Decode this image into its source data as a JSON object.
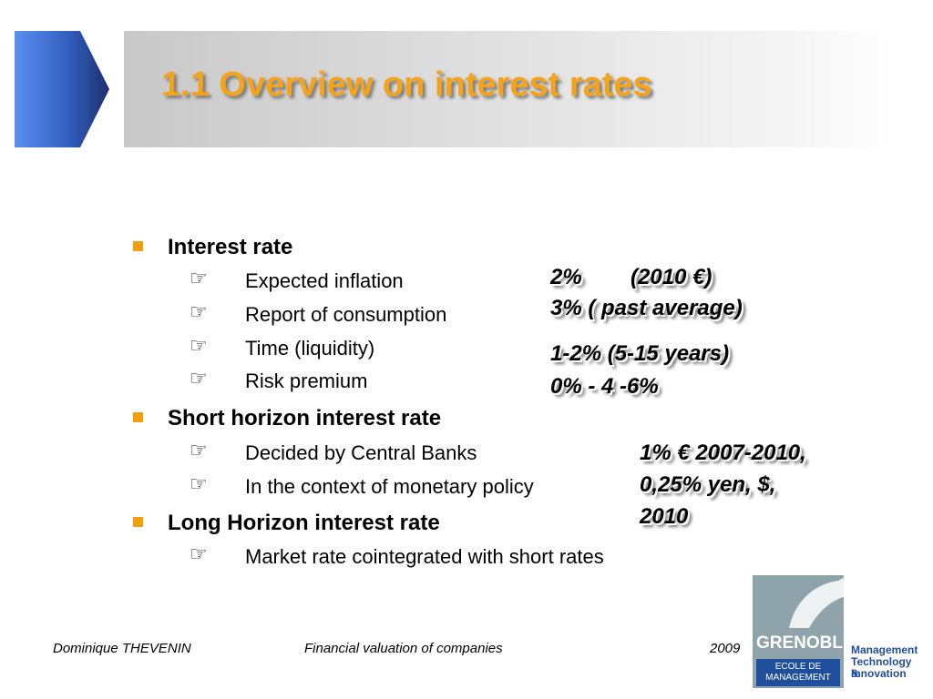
{
  "title": "1.1 Overview on interest rates",
  "accent_colors": {
    "title": "#f5a31a",
    "bullet": "#f29f10",
    "arrow_dark": "#1c2f6e",
    "arrow_light": "#4a7bdb"
  },
  "bullets": [
    {
      "label": "Interest rate",
      "subitems": [
        "Expected inflation",
        "Report of consumption",
        "Time (liquidity)",
        "Risk premium"
      ]
    },
    {
      "label": "Short horizon interest rate",
      "subitems": [
        "Decided by Central Banks",
        "In the context of monetary policy"
      ]
    },
    {
      "label": "Long Horizon interest rate",
      "subitems": [
        "Market rate cointegrated with short rates"
      ]
    }
  ],
  "subitem_icon": "pointing-hand-icon",
  "annotations": {
    "inflation_line1": "2%        (2010 €)",
    "inflation_line2": "3% ( past average)",
    "liquidity_line": "1-2% (5-15 years)",
    "risk_line": "0% - 4 -6%",
    "central_bank_line1": "1% € 2007-2010,",
    "central_bank_line2": "0,25% yen, $,",
    "central_bank_line3": "2010"
  },
  "footer": {
    "author": "Dominique THEVENIN",
    "course": "Financial valuation of companies",
    "year": "2009"
  },
  "logo": {
    "name": "GRENOBLE",
    "school_line1": "ECOLE DE",
    "school_line2": "MANAGEMENT",
    "tagline_line1": "Management",
    "tagline_line2": "Technology &",
    "tagline_line3": "Innovation",
    "icon": "dolphin-icon"
  }
}
